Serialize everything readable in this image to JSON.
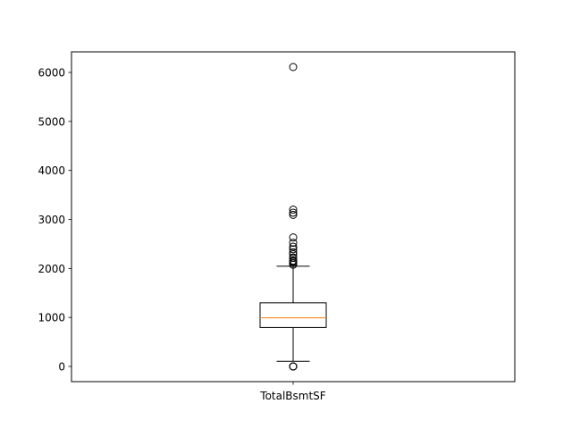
{
  "chart_data": {
    "type": "box",
    "categories": [
      "TotalBsmtSF"
    ],
    "yticks": [
      0,
      1000,
      2000,
      3000,
      4000,
      5000,
      6000
    ],
    "ylim": [
      -310,
      6420
    ],
    "grid": false,
    "boxes": [
      {
        "name": "TotalBsmtSF",
        "whisker_low": 105,
        "q1": 795,
        "median": 991,
        "q3": 1298,
        "whisker_high": 2046,
        "outliers": [
          0,
          0,
          0,
          0,
          2076,
          2110,
          2136,
          2153,
          2158,
          2217,
          2223,
          2290,
          2330,
          2392,
          2444,
          2524,
          2633,
          3094,
          3138,
          3200,
          6110
        ]
      }
    ],
    "colors": {
      "box": "#000000",
      "median": "#ff7f0e",
      "outlier_edge": "#000000"
    }
  }
}
